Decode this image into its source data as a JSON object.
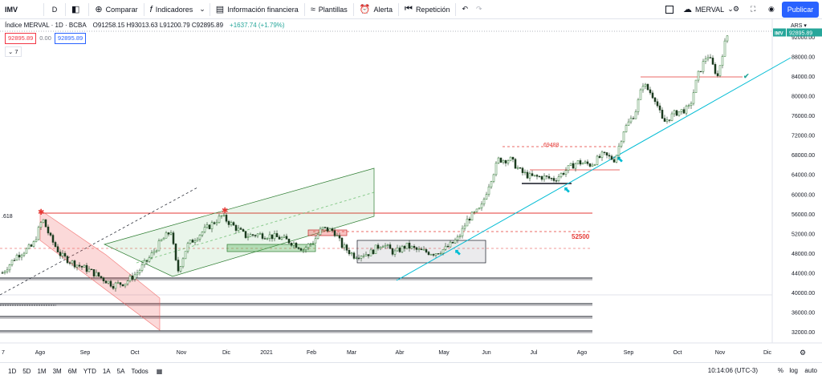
{
  "toolbar": {
    "symbol": "IMV",
    "interval": "D",
    "compare_label": "Comparar",
    "indicators_label": "Indicadores",
    "financial_label": "Información financiera",
    "templates_label": "Plantillas",
    "alert_label": "Alerta",
    "replay_label": "Repetición",
    "layout_name": "MERVAL",
    "publish_label": "Publicar"
  },
  "legend": {
    "title": "Índice MERVAL · 1D · BCBA",
    "ohlc": "O91258.15 H93013.63 L91200.79 C92895.89",
    "change": "+1637.74 (+1.79%)",
    "bid": "92895.89",
    "spread": "0.00",
    "ask": "92895.89",
    "collapse_count": "7"
  },
  "price_axis": {
    "currency": "ARS",
    "ticks": [
      "92000.00",
      "88000.00",
      "84000.00",
      "80000.00",
      "76000.00",
      "72000.00",
      "68000.00",
      "64000.00",
      "60000.00",
      "56000.00",
      "52000.00",
      "48000.00",
      "44000.00",
      "40000.00",
      "36000.00",
      "32000.00"
    ],
    "last_symbol": "IMV",
    "last_price": "92895.89"
  },
  "time_axis": {
    "ticks": [
      "7",
      "Ago",
      "Sep",
      "Oct",
      "Nov",
      "Dic",
      "2021",
      "Feb",
      "Mar",
      "Abr",
      "May",
      "Jun",
      "Jul",
      "Ago",
      "Sep",
      "Oct",
      "Nov",
      "Dic"
    ]
  },
  "annotations": {
    "fib_left": ".618",
    "level_52500": "52500",
    "level_69488": "69488"
  },
  "bottom": {
    "ranges": [
      "1D",
      "5D",
      "1M",
      "3M",
      "6M",
      "YTD",
      "1A",
      "5A",
      "Todos"
    ],
    "clock": "10:14:06 (UTC-3)",
    "percent": "%",
    "log": "log",
    "auto": "auto"
  },
  "colors": {
    "accent": "#2962ff",
    "up": "#26a69a",
    "down": "#ef5350",
    "candle": "#1b5e20",
    "trendline": "#00bcd4",
    "resistance": "#e53935"
  },
  "chart_data": {
    "type": "line",
    "symbol": "IMV",
    "x": [
      "2020-07",
      "2020-08",
      "2020-09",
      "2020-10",
      "2020-11",
      "2020-12",
      "2021-01",
      "2021-02",
      "2021-03",
      "2021-04",
      "2021-05",
      "2021-06",
      "2021-07",
      "2021-08",
      "2021-09",
      "2021-10",
      "2021-11"
    ],
    "series": [
      {
        "name": "IMV",
        "values": [
          44000,
          53000,
          46000,
          42000,
          50000,
          54000,
          51000,
          50000,
          47000,
          48000,
          49500,
          67000,
          64000,
          67000,
          76000,
          78000,
          92895.89
        ]
      }
    ],
    "ylim": [
      30000,
      94000
    ]
  }
}
